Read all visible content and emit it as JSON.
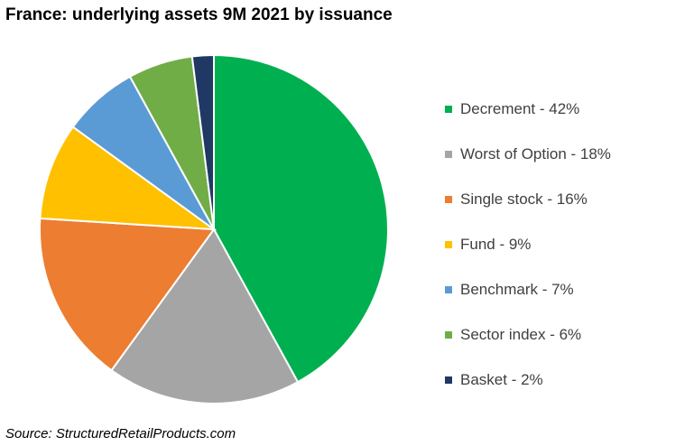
{
  "chart_data": {
    "type": "pie",
    "title": "France: underlying assets 9M 2021 by issuance",
    "categories": [
      "Decrement",
      "Worst of Option",
      "Single stock",
      "Fund",
      "Benchmark",
      "Sector index",
      "Basket"
    ],
    "values": [
      42,
      18,
      16,
      9,
      7,
      6,
      2
    ],
    "unit": "%",
    "legend_labels": [
      "Decrement - 42%",
      "Worst of Option - 18%",
      "Single stock - 16%",
      "Fund - 9%",
      "Benchmark - 7%",
      "Sector index - 6%",
      "Basket - 2%"
    ],
    "colors": [
      "#00B050",
      "#A5A5A5",
      "#ED7D31",
      "#FFC000",
      "#5B9BD5",
      "#70AD47",
      "#203864"
    ],
    "legend_position": "right",
    "start_angle": "top, clockwise"
  },
  "source": "Source: StructuredRetailProducts.com"
}
